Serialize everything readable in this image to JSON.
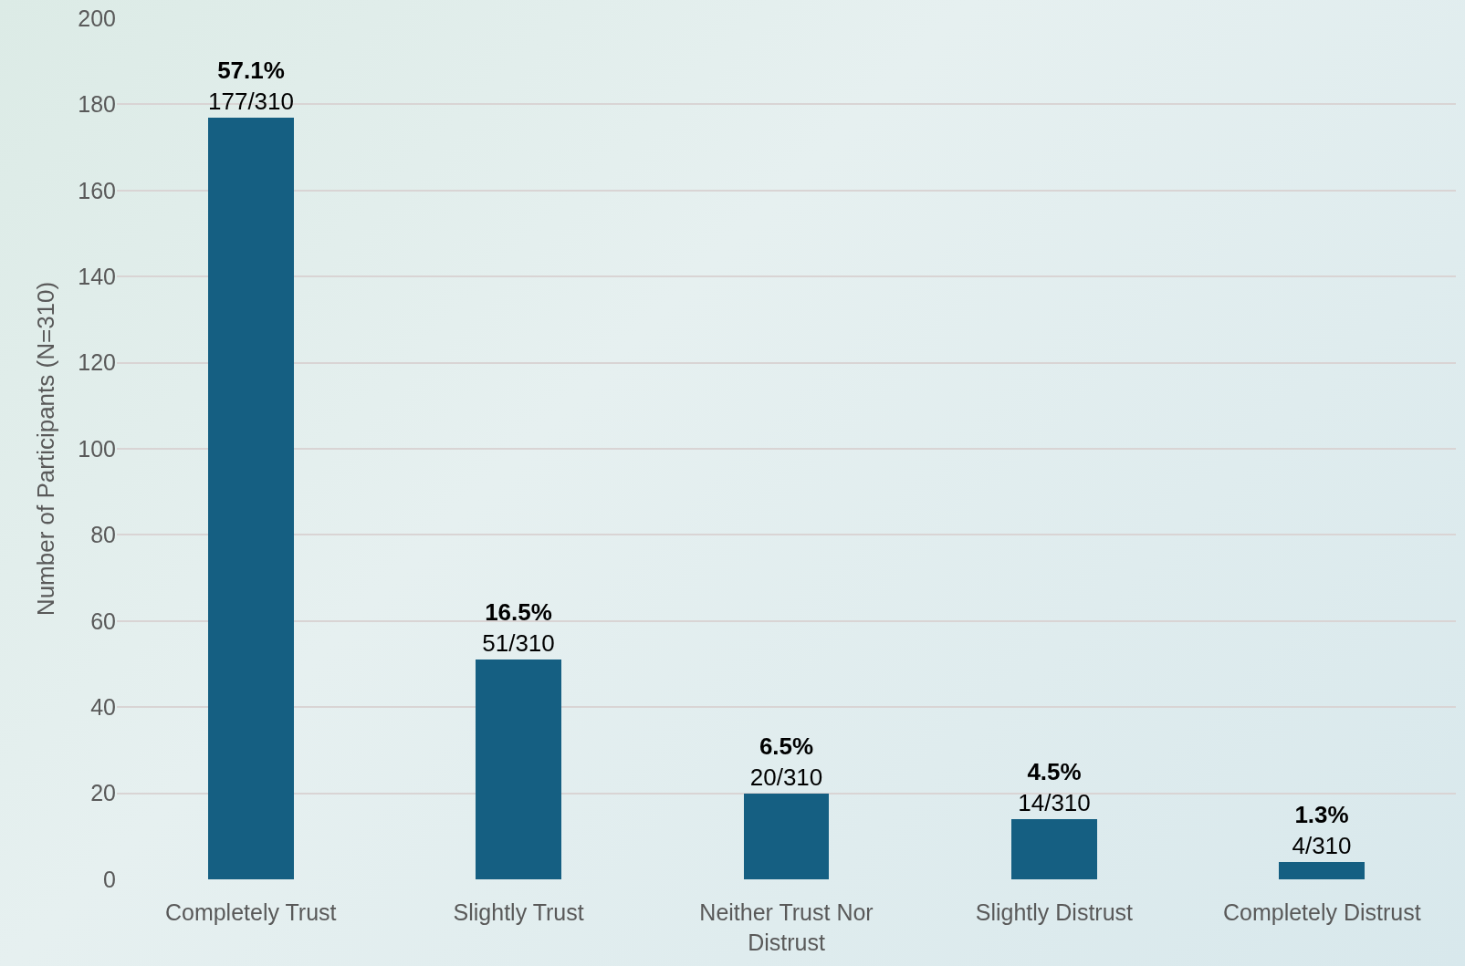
{
  "chart_data": {
    "type": "bar",
    "ylabel": "Number of Participants (N=310)",
    "categories": [
      "Completely Trust",
      "Slightly Trust",
      "Neither Trust Nor Distrust",
      "Slightly Distrust",
      "Completely Distrust"
    ],
    "values": [
      177,
      51,
      20,
      14,
      4
    ],
    "value_labels": [
      "57.1%\n177/310",
      "16.5%\n51/310",
      "6.5%\n20/310",
      "4.5%\n14/310",
      "1.3%\n4/310"
    ],
    "color": "#155f82",
    "ylim": [
      0,
      200
    ],
    "yticks": [
      0,
      20,
      40,
      60,
      80,
      100,
      120,
      140,
      160,
      180,
      200
    ],
    "grid": "y"
  }
}
